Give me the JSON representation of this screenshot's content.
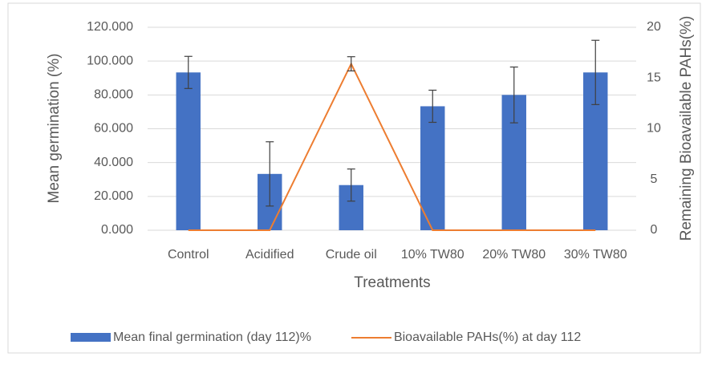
{
  "chart_data": {
    "type": "bar_line",
    "categories": [
      "Control",
      "Acidified",
      "Crude oil",
      "10% TW80",
      "20% TW80",
      "30% TW80"
    ],
    "series": [
      {
        "name": "Mean final germination (day 112)%",
        "type": "bar",
        "color": "#4472c4",
        "axis": "y",
        "values": [
          93.3,
          33.3,
          26.7,
          73.3,
          80,
          93.3
        ],
        "errors": [
          9.5,
          19,
          9.5,
          9.5,
          16.5,
          19
        ]
      },
      {
        "name": "Bioavailable PAHs(%) at day 112",
        "type": "line",
        "color": "#ed7d31",
        "axis": "y2",
        "values": [
          0,
          0,
          16.4,
          0,
          0,
          0
        ],
        "errors": [
          0,
          0,
          0.7,
          0,
          0,
          0
        ]
      }
    ],
    "ylabel": "Mean germination (%)",
    "y2label": "Remaining Bioavailable PAHs(%)",
    "xlabel": "Treatments",
    "ylim": [
      0,
      120
    ],
    "yticks": [
      {
        "value": 0,
        "label": "0.000"
      },
      {
        "value": 20,
        "label": "20.000"
      },
      {
        "value": 40,
        "label": "40.000"
      },
      {
        "value": 60,
        "label": "60.000"
      },
      {
        "value": 80,
        "label": "80.000"
      },
      {
        "value": 100,
        "label": "100.000"
      },
      {
        "value": 120,
        "label": "120.000"
      }
    ],
    "y2lim": [
      0,
      20
    ],
    "y2ticks": [
      0,
      5,
      10,
      15,
      20
    ],
    "grid": true,
    "legend": "bottom"
  }
}
